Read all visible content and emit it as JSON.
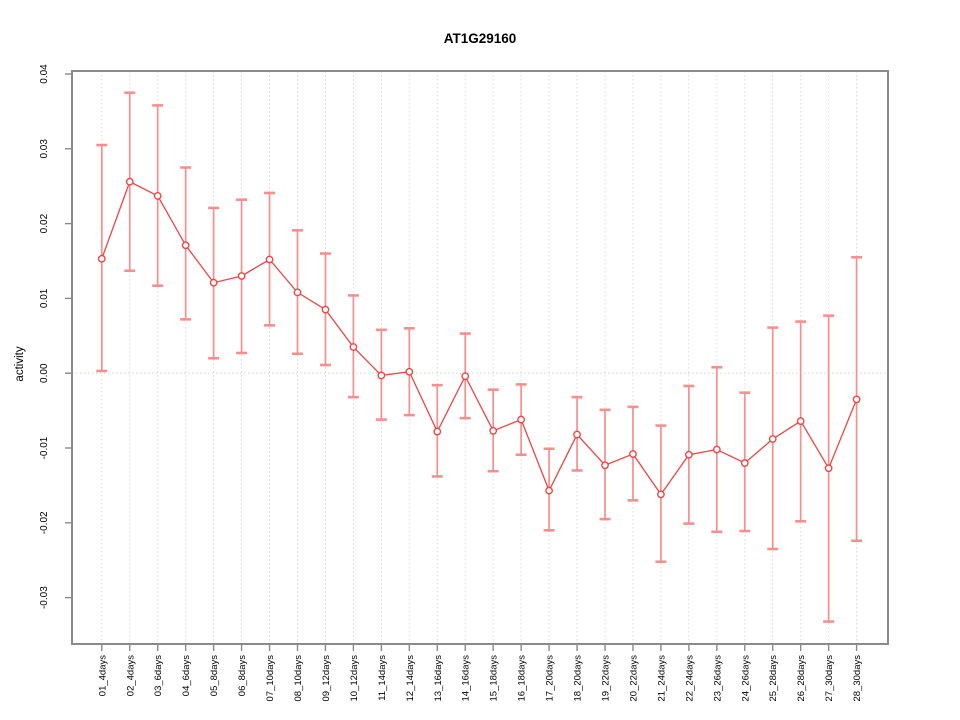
{
  "figure": {
    "title": "AT1G29160"
  },
  "chart_data": {
    "type": "line",
    "title": "AT1G29160",
    "xlabel": "",
    "ylabel": "activity",
    "legend": "none",
    "grid": "vertical dotted gridline per category; horizontal dotted line at y=0",
    "marker": "open-circle",
    "error_bars": true,
    "categories": [
      "01_4days",
      "02_4days",
      "03_6days",
      "04_6days",
      "05_8days",
      "06_8days",
      "07_10days",
      "08_10days",
      "09_12days",
      "10_12days",
      "11_14days",
      "12_14days",
      "13_16days",
      "14_16days",
      "15_18days",
      "16_18days",
      "17_20days",
      "18_20days",
      "19_22days",
      "20_22days",
      "21_24days",
      "22_24days",
      "23_26days",
      "24_26days",
      "25_28days",
      "26_28days",
      "27_30days",
      "28_30days"
    ],
    "series": [
      {
        "name": "activity",
        "values": [
          0.0153,
          0.0256,
          0.0237,
          0.0171,
          0.0121,
          0.013,
          0.0152,
          0.0108,
          0.0085,
          0.0035,
          -0.0003,
          0.0002,
          -0.0078,
          -0.0004,
          -0.0077,
          -0.0062,
          -0.0157,
          -0.0082,
          -0.0123,
          -0.0108,
          -0.0162,
          -0.0109,
          -0.0102,
          -0.012,
          -0.0088,
          -0.0064,
          -0.0127,
          -0.0035
        ],
        "error_low": [
          0.0003,
          0.0137,
          0.0117,
          0.0072,
          0.002,
          0.0027,
          0.0064,
          0.0026,
          0.0011,
          -0.0032,
          -0.0062,
          -0.0056,
          -0.0138,
          -0.006,
          -0.0131,
          -0.0109,
          -0.021,
          -0.013,
          -0.0195,
          -0.017,
          -0.0252,
          -0.0201,
          -0.0212,
          -0.0211,
          -0.0235,
          -0.0198,
          -0.0332,
          -0.0224
        ],
        "error_high": [
          0.0305,
          0.0375,
          0.0358,
          0.0275,
          0.0221,
          0.0232,
          0.0241,
          0.0191,
          0.016,
          0.0104,
          0.0058,
          0.006,
          -0.0016,
          0.0053,
          -0.0022,
          -0.0015,
          -0.0101,
          -0.0032,
          -0.0049,
          -0.0045,
          -0.007,
          -0.0017,
          0.0008,
          -0.0026,
          0.0061,
          0.0069,
          0.0077,
          0.0155
        ]
      }
    ],
    "yticks": [
      0.04,
      0.03,
      0.02,
      0.01,
      0.0,
      -0.01,
      -0.02,
      -0.03
    ],
    "ylim": [
      -0.0362,
      0.0404
    ],
    "colors": {
      "line": "#f04545",
      "point_stroke": "#f04545",
      "point_fill": "#ffffff",
      "error_bar": "#f78f8f",
      "grid": "#dadada",
      "zero_line": "#dbd7cf",
      "frame": "#8a8a8a",
      "tick": "#8a8a8a",
      "text": "#000000"
    }
  }
}
